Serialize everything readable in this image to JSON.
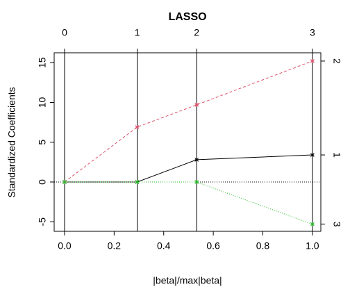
{
  "chart_data": {
    "type": "line",
    "title": "LASSO",
    "xlabel": "|beta|/max|beta|",
    "ylabel": "Standardized Coefficients",
    "x": [
      0,
      0.293,
      0.533,
      1.0
    ],
    "series": [
      {
        "color": "#000000",
        "dash": "solid",
        "label": "1",
        "values": [
          0,
          0,
          2.8,
          3.4
        ]
      },
      {
        "color": "#df536b",
        "dash": "dashed",
        "label": "2",
        "values": [
          0,
          6.9,
          9.7,
          15.2
        ]
      },
      {
        "color": "#22b822",
        "dash": "dotted",
        "label": "3",
        "values": [
          0,
          0,
          0,
          -5.3
        ]
      }
    ],
    "top_ticks": [
      0,
      1,
      2,
      3
    ],
    "xlim": [
      -0.042,
      1.034
    ],
    "ylim": [
      -6.2,
      16.24
    ],
    "xticks": [
      {
        "value": 0,
        "label": "0.0"
      },
      {
        "value": 0.2,
        "label": "0.2"
      },
      {
        "value": 0.4,
        "label": "0.4"
      },
      {
        "value": 0.6,
        "label": "0.6"
      },
      {
        "value": 0.8,
        "label": "0.8"
      },
      {
        "value": 1,
        "label": "1.0"
      }
    ],
    "yticks": [
      -5,
      0,
      5,
      10,
      15
    ]
  }
}
